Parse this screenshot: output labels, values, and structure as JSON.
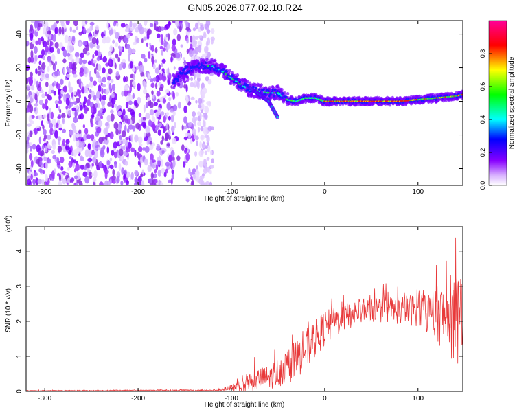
{
  "title": "GN05.2026.077.02.10.R24",
  "chart_data": [
    {
      "type": "heatmap",
      "panel": "spectrogram",
      "xlabel": "Height of straight line (km)",
      "ylabel": "Frequency (Hz)",
      "xlim": [
        -320,
        148
      ],
      "ylim": [
        -50,
        48
      ],
      "xticks": [
        -300,
        -200,
        -100,
        0,
        100
      ],
      "yticks": [
        -40,
        -20,
        0,
        20,
        40
      ],
      "noise_region_x": [
        -320,
        -125
      ],
      "signal_trace": {
        "x": [
          -160,
          -150,
          -140,
          -130,
          -120,
          -110,
          -100,
          -90,
          -80,
          -70,
          -60,
          -50,
          -40,
          -30,
          -20,
          -10,
          0,
          20,
          40,
          60,
          80,
          100,
          120,
          140,
          148
        ],
        "frequency": [
          12,
          18,
          20,
          21,
          21,
          18,
          14,
          10,
          7,
          6,
          5,
          5,
          1,
          0,
          2,
          2,
          0,
          0,
          0,
          0,
          0,
          1,
          2,
          3,
          4
        ]
      },
      "side_branch": {
        "x": [
          -80,
          -70,
          -60,
          -55,
          -50
        ],
        "frequency": [
          8,
          4,
          0,
          -5,
          -10
        ]
      },
      "colorbar": {
        "label": "Normalized spectral amplitude",
        "range": [
          0,
          1
        ],
        "ticks": [
          "0.0",
          "0.2",
          "0.4",
          "0.6",
          "0.8"
        ]
      }
    },
    {
      "type": "line",
      "panel": "snr",
      "xlabel": "Height of straight line (km)",
      "ylabel": "SNR (10 * v/v)",
      "multiplier": "(x10",
      "multiplier_exp": "4",
      "multiplier_close": ")",
      "xlim": [
        -320,
        148
      ],
      "ylim": [
        0,
        4.7
      ],
      "xticks": [
        -300,
        -200,
        -100,
        0,
        100
      ],
      "yticks": [
        0,
        1,
        2,
        3,
        4
      ],
      "color": "#e8393a",
      "envelope": {
        "x": [
          -320,
          -120,
          -110,
          -100,
          -90,
          -80,
          -60,
          -40,
          -20,
          0,
          20,
          40,
          60,
          80,
          100,
          120,
          130,
          140,
          148
        ],
        "mean": [
          0.02,
          0.03,
          0.05,
          0.1,
          0.2,
          0.3,
          0.4,
          0.7,
          1.2,
          1.8,
          2.1,
          2.3,
          2.35,
          2.3,
          2.35,
          2.2,
          2.1,
          2.0,
          2.0
        ],
        "amplitude": [
          0.01,
          0.02,
          0.05,
          0.1,
          0.25,
          0.3,
          0.35,
          0.5,
          0.6,
          0.5,
          0.4,
          0.35,
          0.4,
          0.4,
          0.5,
          0.8,
          1.0,
          1.3,
          1.2
        ]
      }
    }
  ]
}
